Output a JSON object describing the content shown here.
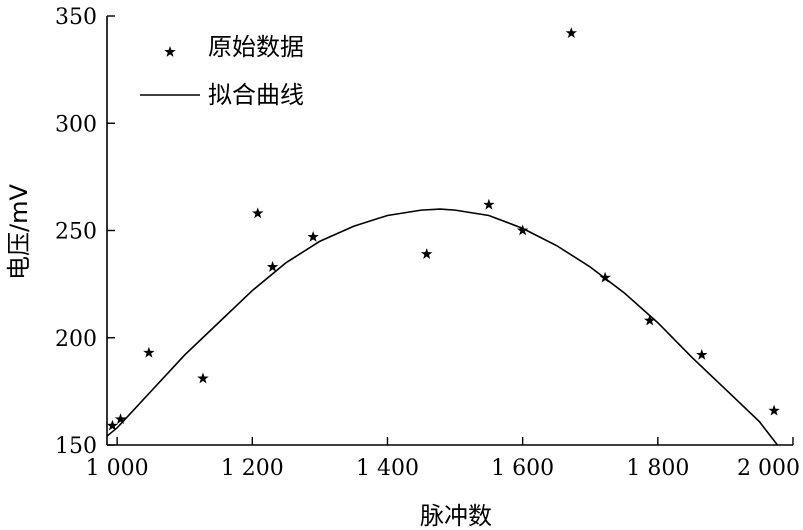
{
  "chart_data": {
    "type": "scatter",
    "xlabel": "脉冲数",
    "ylabel": "电压/mV",
    "xlim": [
      985,
      2000
    ],
    "ylim": [
      150,
      350
    ],
    "x_ticks": [
      1000,
      1200,
      1400,
      1600,
      1800,
      2000
    ],
    "x_tick_labels": [
      "1 000",
      "1 200",
      "1 400",
      "1 600",
      "1 800",
      "2 000"
    ],
    "y_ticks": [
      150,
      200,
      250,
      300,
      350
    ],
    "y_tick_labels": [
      "150",
      "200",
      "250",
      "300",
      "350"
    ],
    "grid": false,
    "legend_position": "top-left",
    "series": [
      {
        "name": "原始数据",
        "kind": "scatter",
        "marker": "star",
        "points": [
          [
            993,
            159
          ],
          [
            1005,
            162
          ],
          [
            1047,
            193
          ],
          [
            1127,
            181
          ],
          [
            1208,
            258
          ],
          [
            1230,
            233
          ],
          [
            1290,
            247
          ],
          [
            1458,
            239
          ],
          [
            1550,
            262
          ],
          [
            1600,
            250
          ],
          [
            1672,
            342
          ],
          [
            1722,
            228
          ],
          [
            1788,
            208
          ],
          [
            1865,
            192
          ],
          [
            1972,
            166
          ]
        ]
      },
      {
        "name": "拟合曲线",
        "kind": "line",
        "points": [
          [
            969,
            150
          ],
          [
            1000,
            158
          ],
          [
            1050,
            175
          ],
          [
            1100,
            192
          ],
          [
            1150,
            207
          ],
          [
            1200,
            222
          ],
          [
            1250,
            235
          ],
          [
            1300,
            245
          ],
          [
            1350,
            252
          ],
          [
            1400,
            257
          ],
          [
            1450,
            259.5
          ],
          [
            1478,
            260
          ],
          [
            1500,
            259.5
          ],
          [
            1550,
            257
          ],
          [
            1600,
            251
          ],
          [
            1650,
            243
          ],
          [
            1700,
            233
          ],
          [
            1750,
            221
          ],
          [
            1800,
            207
          ],
          [
            1850,
            191
          ],
          [
            1900,
            176
          ],
          [
            1950,
            161
          ],
          [
            1977,
            150
          ]
        ]
      }
    ]
  }
}
